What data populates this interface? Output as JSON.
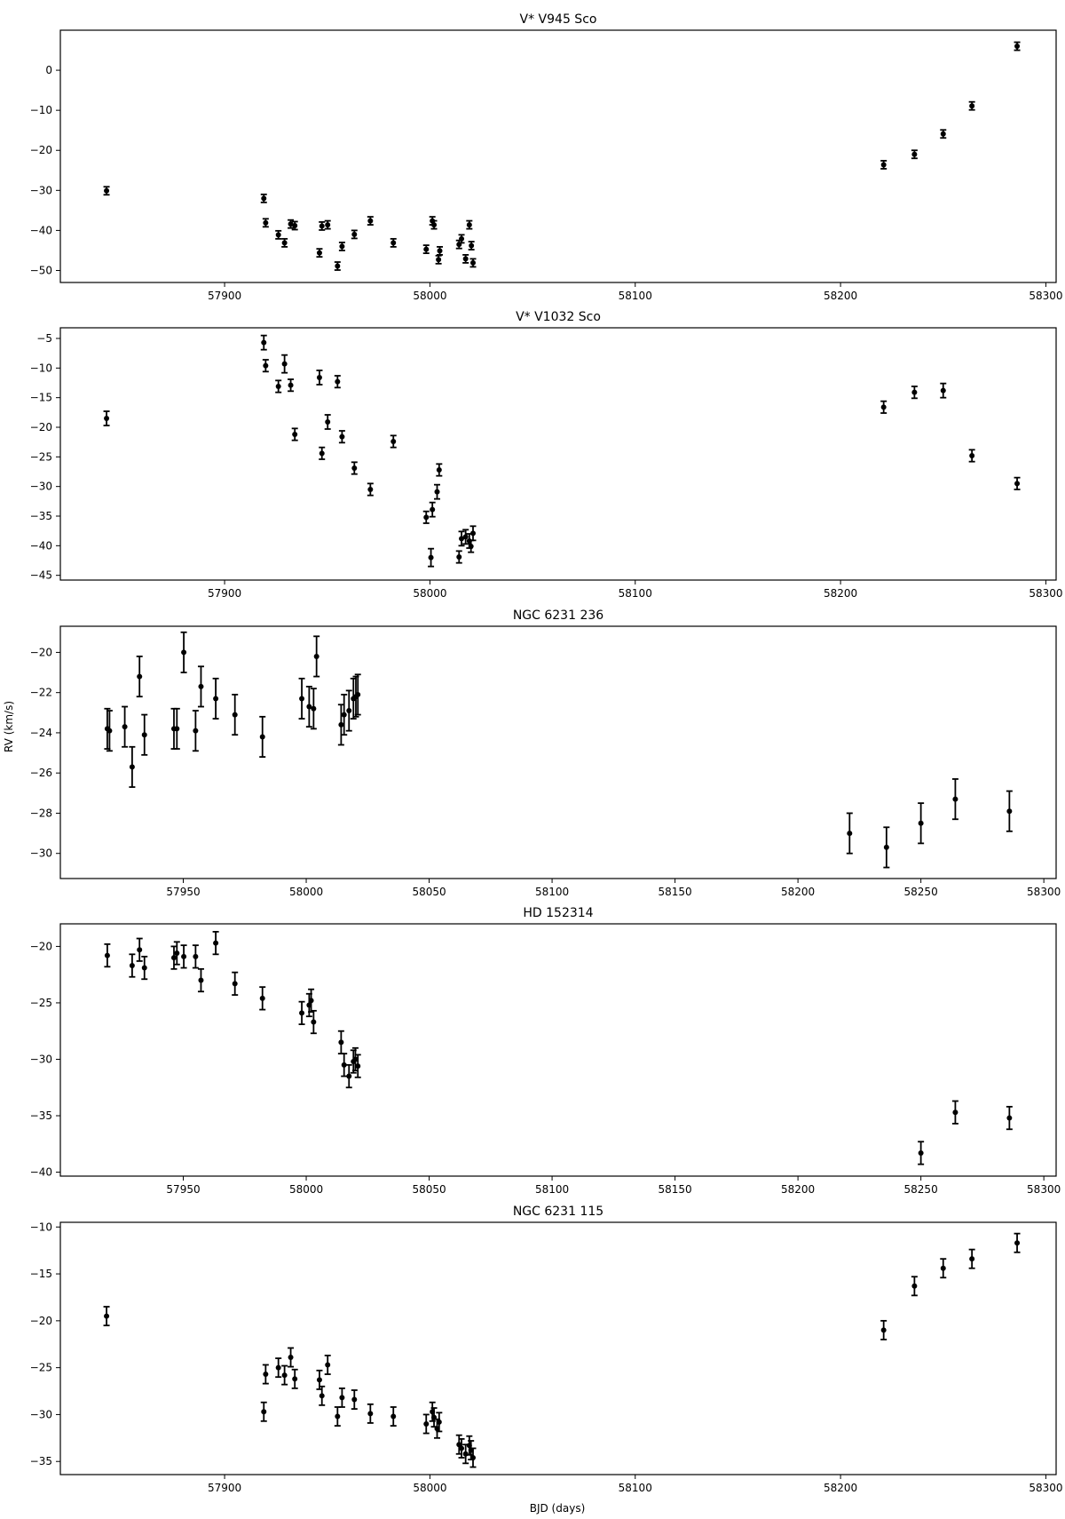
{
  "figure": {
    "xlabel": "BJD (days)",
    "ylabel": "RV (km/s)"
  },
  "chart_data": [
    {
      "type": "scatter",
      "title": "V* V945 Sco",
      "xlabel": "",
      "ylabel": "",
      "xlim": [
        57820,
        58305
      ],
      "ylim": [
        -53,
        10
      ],
      "xticks": [
        57900,
        58000,
        58100,
        58200,
        58300
      ],
      "yticks": [
        0,
        -10,
        -20,
        -30,
        -40,
        -50
      ],
      "grid": false,
      "points": [
        [
          57842.5,
          -30.1,
          1.0
        ],
        [
          57919.1,
          -32.0,
          1.0
        ],
        [
          57920.0,
          -38.1,
          1.0
        ],
        [
          57926.2,
          -41.1,
          1.0
        ],
        [
          57929.2,
          -43.1,
          1.0
        ],
        [
          57932.2,
          -38.4,
          1.0
        ],
        [
          57934.2,
          -38.8,
          1.0
        ],
        [
          57946.2,
          -45.6,
          1.0
        ],
        [
          57947.4,
          -38.9,
          1.0
        ],
        [
          57950.2,
          -38.6,
          1.0
        ],
        [
          57955.0,
          -48.9,
          1.0
        ],
        [
          57957.2,
          -44.0,
          1.0
        ],
        [
          57963.2,
          -41.0,
          1.0
        ],
        [
          57971.0,
          -37.6,
          1.0
        ],
        [
          57982.2,
          -43.1,
          1.0
        ],
        [
          57998.2,
          -44.7,
          1.0
        ],
        [
          58001.2,
          -37.6,
          1.0
        ],
        [
          58002.0,
          -38.6,
          1.0
        ],
        [
          58004.2,
          -47.3,
          1.0
        ],
        [
          58004.8,
          -45.1,
          1.0
        ],
        [
          58014.2,
          -43.5,
          1.0
        ],
        [
          58015.4,
          -42.1,
          1.0
        ],
        [
          58017.4,
          -47.1,
          1.0
        ],
        [
          58019.2,
          -38.6,
          1.0
        ],
        [
          58020.2,
          -43.8,
          1.0
        ],
        [
          58021.0,
          -48.1,
          1.0
        ],
        [
          58221.0,
          -23.6,
          1.0
        ],
        [
          58236.0,
          -21.0,
          1.0
        ],
        [
          58250.0,
          -15.9,
          1.0
        ],
        [
          58264.0,
          -8.9,
          1.0
        ],
        [
          58286.0,
          6.0,
          1.0
        ]
      ]
    },
    {
      "type": "scatter",
      "title": "V* V1032 Sco",
      "xlabel": "",
      "ylabel": "",
      "xlim": [
        57820,
        58305
      ],
      "ylim": [
        -45.8,
        -3.2
      ],
      "xticks": [
        57900,
        58000,
        58100,
        58200,
        58300
      ],
      "yticks": [
        -5,
        -10,
        -15,
        -20,
        -25,
        -30,
        -35,
        -40,
        -45
      ],
      "grid": false,
      "points": [
        [
          57842.5,
          -18.5,
          1.2
        ],
        [
          57919.1,
          -5.7,
          1.2
        ],
        [
          57920.0,
          -9.6,
          1.0
        ],
        [
          57926.2,
          -13.1,
          1.0
        ],
        [
          57929.2,
          -9.3,
          1.5
        ],
        [
          57932.2,
          -12.9,
          1.0
        ],
        [
          57934.2,
          -21.2,
          1.0
        ],
        [
          57946.2,
          -11.6,
          1.2
        ],
        [
          57947.4,
          -24.4,
          1.0
        ],
        [
          57950.2,
          -19.1,
          1.2
        ],
        [
          57955.0,
          -12.3,
          1.0
        ],
        [
          57957.2,
          -21.6,
          1.0
        ],
        [
          57963.2,
          -26.9,
          1.0
        ],
        [
          57971.0,
          -30.5,
          1.0
        ],
        [
          57982.2,
          -22.4,
          1.0
        ],
        [
          57998.2,
          -35.2,
          1.0
        ],
        [
          58000.5,
          -42.0,
          1.5
        ],
        [
          58001.2,
          -33.9,
          1.2
        ],
        [
          58003.5,
          -30.9,
          1.2
        ],
        [
          58004.5,
          -27.2,
          1.0
        ],
        [
          58014.2,
          -41.9,
          1.0
        ],
        [
          58015.4,
          -38.8,
          1.2
        ],
        [
          58017.4,
          -38.5,
          1.2
        ],
        [
          58019.2,
          -39.2,
          1.2
        ],
        [
          58020.0,
          -40.1,
          1.0
        ],
        [
          58021.0,
          -37.9,
          1.2
        ],
        [
          58221.0,
          -16.6,
          1.0
        ],
        [
          58236.0,
          -14.1,
          1.0
        ],
        [
          58250.0,
          -13.8,
          1.2
        ],
        [
          58264.0,
          -24.8,
          1.0
        ],
        [
          58286.0,
          -29.5,
          1.0
        ]
      ]
    },
    {
      "type": "scatter",
      "title": "NGC 6231 236",
      "xlabel": "",
      "ylabel": "RV (km/s)",
      "xlim": [
        57900,
        58305
      ],
      "ylim": [
        -31.25,
        -18.7
      ],
      "xticks": [
        57950,
        58000,
        58050,
        58100,
        58150,
        58200,
        58250,
        58300
      ],
      "yticks": [
        -20,
        -22,
        -24,
        -26,
        -28,
        -30
      ],
      "grid": false,
      "points": [
        [
          57919.1,
          -23.8,
          1.0
        ],
        [
          57920.0,
          -23.9,
          1.0
        ],
        [
          57926.2,
          -23.7,
          1.0
        ],
        [
          57929.2,
          -25.7,
          1.0
        ],
        [
          57932.2,
          -21.2,
          1.0
        ],
        [
          57934.2,
          -24.1,
          1.0
        ],
        [
          57946.2,
          -23.8,
          1.0
        ],
        [
          57947.4,
          -23.8,
          1.0
        ],
        [
          57950.2,
          -20.0,
          1.0
        ],
        [
          57955.0,
          -23.9,
          1.0
        ],
        [
          57957.2,
          -21.7,
          1.0
        ],
        [
          57963.2,
          -22.3,
          1.0
        ],
        [
          57971.0,
          -23.1,
          1.0
        ],
        [
          57982.2,
          -24.2,
          1.0
        ],
        [
          57998.2,
          -22.3,
          1.0
        ],
        [
          58001.2,
          -22.7,
          1.0
        ],
        [
          58003.0,
          -22.8,
          1.0
        ],
        [
          58004.2,
          -20.2,
          1.0
        ],
        [
          58014.2,
          -23.6,
          1.0
        ],
        [
          58015.4,
          -23.1,
          1.0
        ],
        [
          58017.4,
          -22.9,
          1.0
        ],
        [
          58019.2,
          -22.3,
          1.0
        ],
        [
          58020.2,
          -22.2,
          1.0
        ],
        [
          58021.0,
          -22.1,
          1.0
        ],
        [
          58221.0,
          -29.0,
          1.0
        ],
        [
          58236.0,
          -29.7,
          1.0
        ],
        [
          58250.0,
          -28.5,
          1.0
        ],
        [
          58264.0,
          -27.3,
          1.0
        ],
        [
          58286.0,
          -27.9,
          1.0
        ]
      ]
    },
    {
      "type": "scatter",
      "title": "HD 152314",
      "xlabel": "",
      "ylabel": "",
      "xlim": [
        57900,
        58305
      ],
      "ylim": [
        -40.35,
        -18.0
      ],
      "xticks": [
        57950,
        58000,
        58050,
        58100,
        58150,
        58200,
        58250,
        58300
      ],
      "yticks": [
        -20,
        -25,
        -30,
        -35,
        -40
      ],
      "grid": false,
      "points": [
        [
          57919.1,
          -20.8,
          1.0
        ],
        [
          57929.2,
          -21.7,
          1.0
        ],
        [
          57932.2,
          -20.3,
          1.0
        ],
        [
          57934.2,
          -21.9,
          1.0
        ],
        [
          57946.2,
          -21.0,
          1.0
        ],
        [
          57947.4,
          -20.6,
          1.0
        ],
        [
          57950.2,
          -20.9,
          1.0
        ],
        [
          57955.0,
          -20.9,
          1.0
        ],
        [
          57957.2,
          -23.0,
          1.0
        ],
        [
          57963.2,
          -19.7,
          1.0
        ],
        [
          57971.0,
          -23.3,
          1.0
        ],
        [
          57982.2,
          -24.6,
          1.0
        ],
        [
          57998.2,
          -25.9,
          1.0
        ],
        [
          58001.2,
          -25.2,
          1.0
        ],
        [
          58002.0,
          -24.8,
          1.0
        ],
        [
          58003.0,
          -26.7,
          1.0
        ],
        [
          58014.2,
          -28.5,
          1.0
        ],
        [
          58015.4,
          -30.5,
          1.0
        ],
        [
          58017.4,
          -31.5,
          1.0
        ],
        [
          58019.2,
          -30.2,
          1.0
        ],
        [
          58020.0,
          -30.0,
          1.0
        ],
        [
          58021.0,
          -30.6,
          1.0
        ],
        [
          58250.0,
          -38.3,
          1.0
        ],
        [
          58264.0,
          -34.7,
          1.0
        ],
        [
          58286.0,
          -35.2,
          1.0
        ]
      ]
    },
    {
      "type": "scatter",
      "title": "NGC 6231 115",
      "xlabel": "BJD (days)",
      "ylabel": "",
      "xlim": [
        57820,
        58305
      ],
      "ylim": [
        -36.4,
        -9.5
      ],
      "xticks": [
        57900,
        58000,
        58100,
        58200,
        58300
      ],
      "yticks": [
        -10,
        -15,
        -20,
        -25,
        -30,
        -35
      ],
      "grid": false,
      "points": [
        [
          57842.5,
          -19.5,
          1.0
        ],
        [
          57919.1,
          -29.7,
          1.0
        ],
        [
          57920.0,
          -25.7,
          1.0
        ],
        [
          57926.2,
          -25.0,
          1.0
        ],
        [
          57929.2,
          -25.8,
          1.0
        ],
        [
          57932.2,
          -23.9,
          1.0
        ],
        [
          57934.2,
          -26.2,
          1.0
        ],
        [
          57946.2,
          -26.3,
          1.0
        ],
        [
          57947.4,
          -28.0,
          1.0
        ],
        [
          57950.2,
          -24.7,
          1.0
        ],
        [
          57955.0,
          -30.2,
          1.0
        ],
        [
          57957.2,
          -28.2,
          1.0
        ],
        [
          57963.2,
          -28.4,
          1.0
        ],
        [
          57971.0,
          -29.9,
          1.0
        ],
        [
          57982.2,
          -30.2,
          1.0
        ],
        [
          57998.2,
          -31.0,
          1.0
        ],
        [
          58001.2,
          -29.7,
          1.0
        ],
        [
          58002.0,
          -30.3,
          1.0
        ],
        [
          58003.5,
          -31.5,
          1.0
        ],
        [
          58004.5,
          -30.8,
          1.0
        ],
        [
          58014.2,
          -33.2,
          1.0
        ],
        [
          58015.4,
          -33.6,
          1.0
        ],
        [
          58017.4,
          -34.2,
          1.0
        ],
        [
          58019.2,
          -33.3,
          1.0
        ],
        [
          58020.0,
          -33.8,
          1.0
        ],
        [
          58021.0,
          -34.6,
          1.0
        ],
        [
          58221.0,
          -21.0,
          1.0
        ],
        [
          58236.0,
          -16.3,
          1.0
        ],
        [
          58250.0,
          -14.4,
          1.0
        ],
        [
          58264.0,
          -13.4,
          1.0
        ],
        [
          58286.0,
          -11.7,
          1.0
        ]
      ]
    }
  ]
}
